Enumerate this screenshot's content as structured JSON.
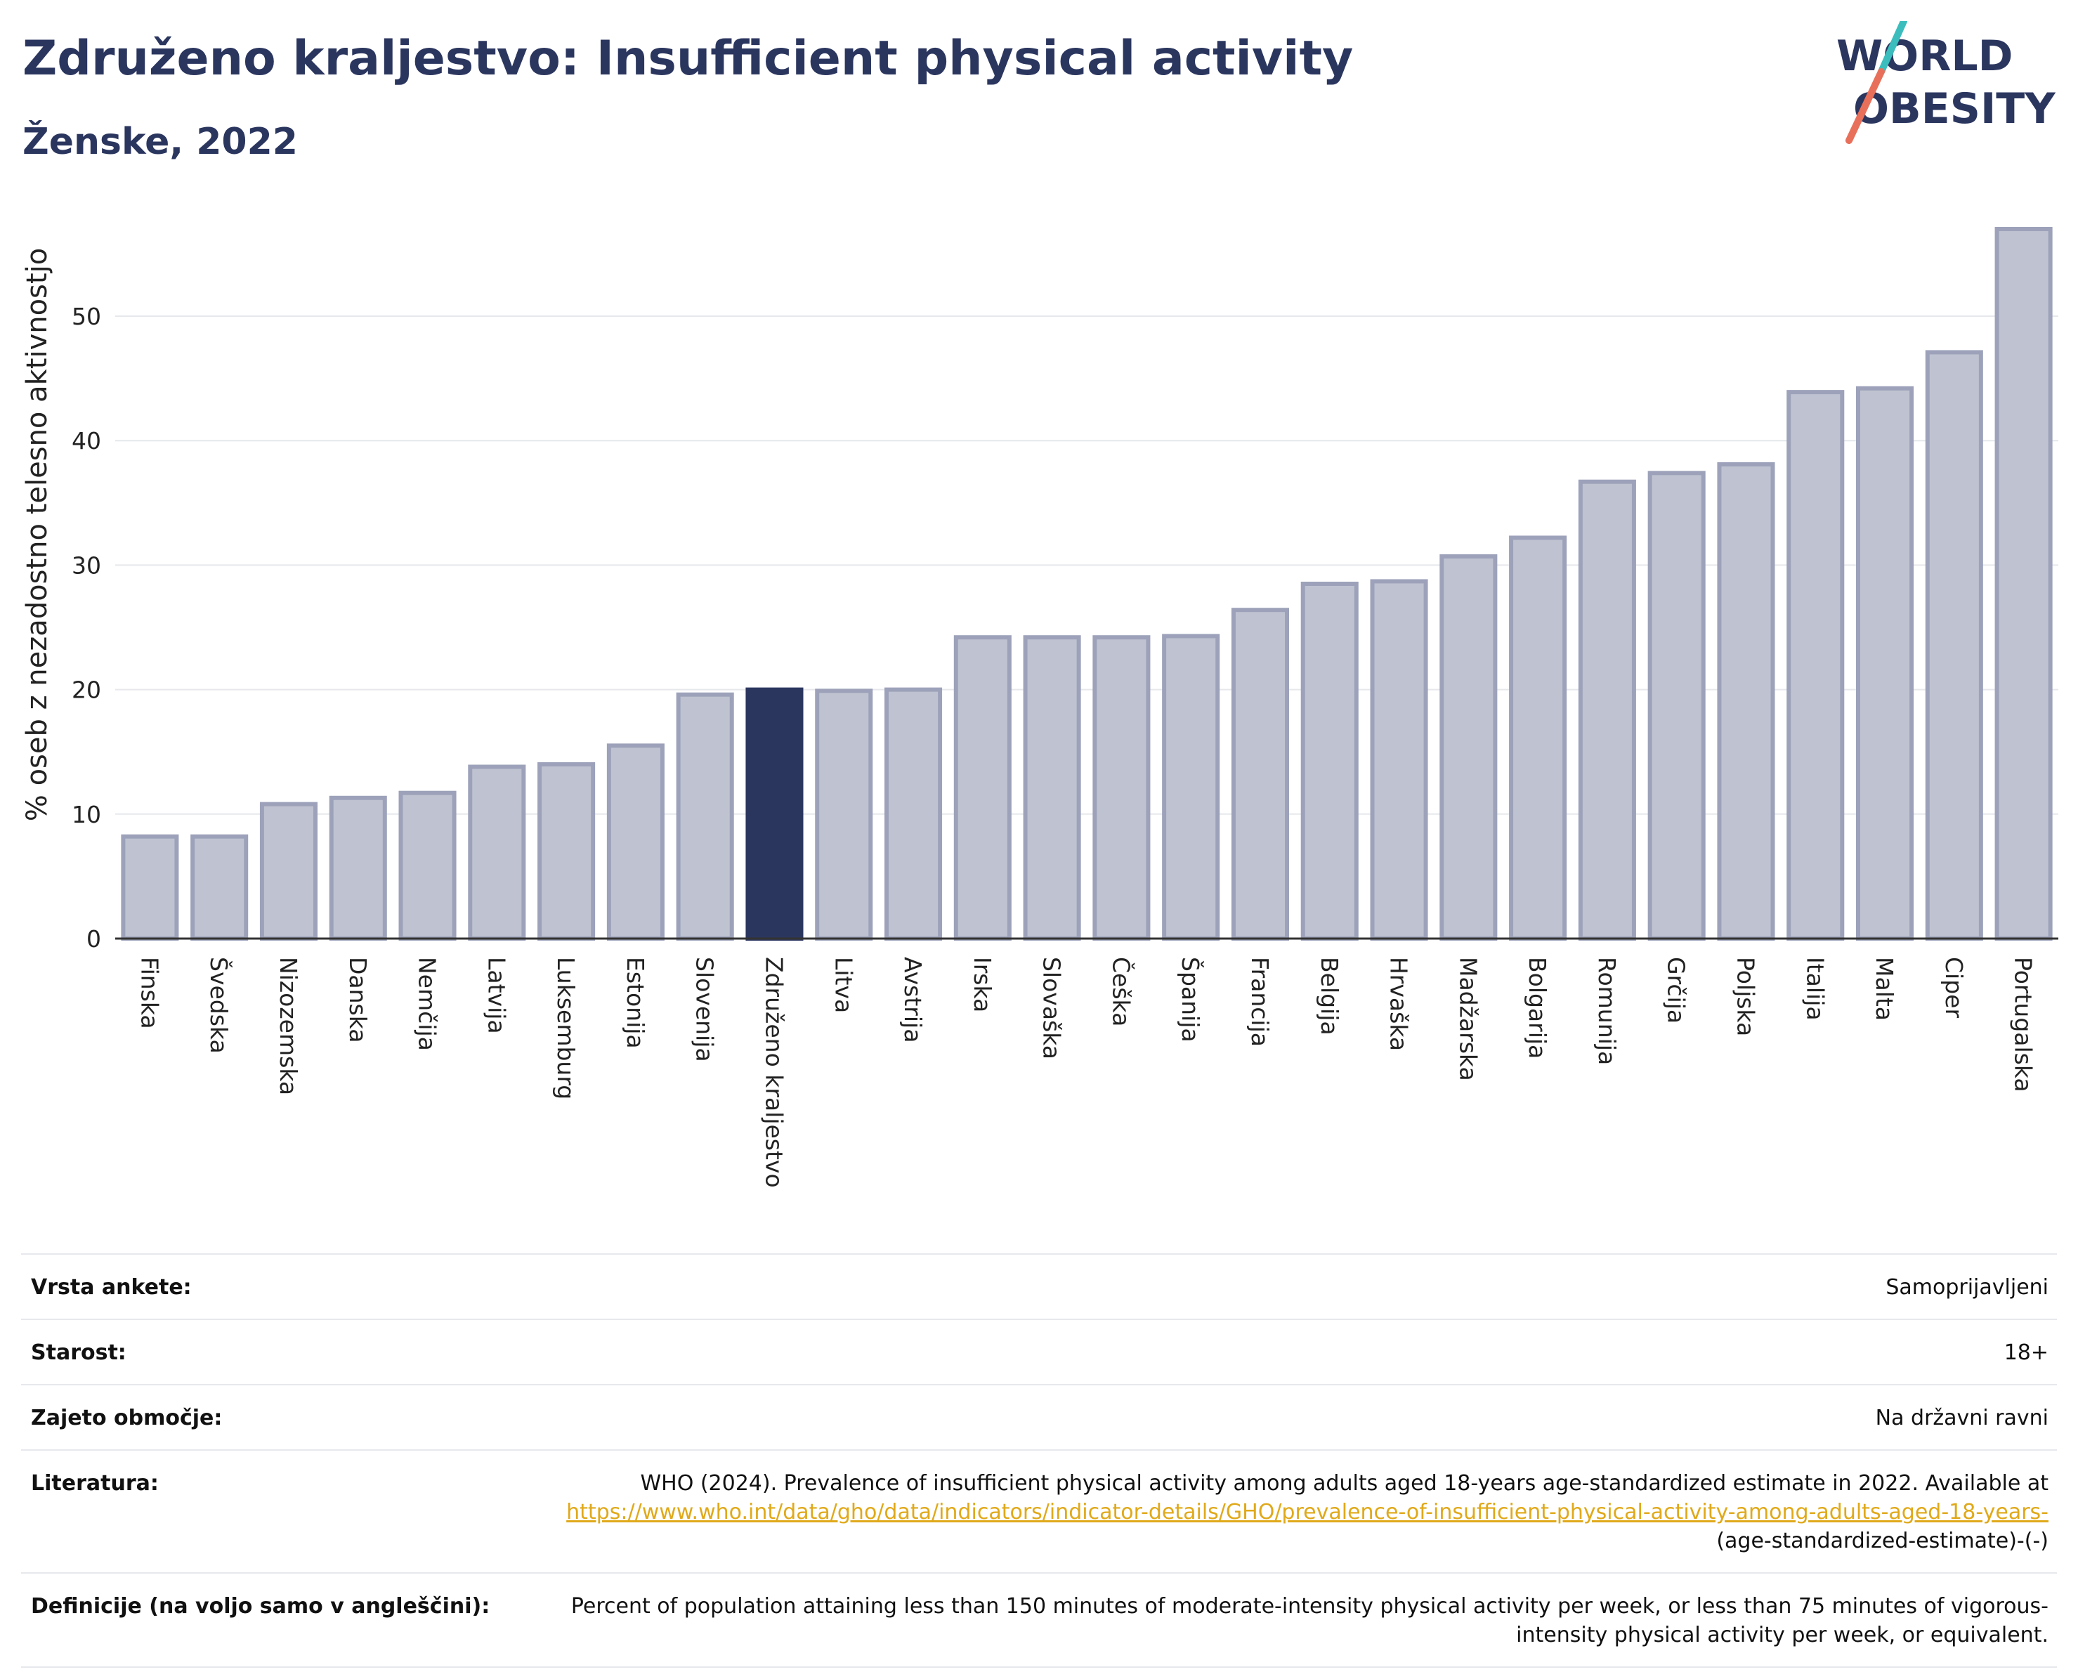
{
  "header": {
    "title": "Združeno kraljestvo: Insufficient physical activity",
    "subtitle": "Ženske, 2022"
  },
  "logo": {
    "line1": "WORLD",
    "line2": "OBESITY"
  },
  "colors": {
    "bar": "#bfc3d1",
    "bar_border": "#9da2ba",
    "highlight": "#2b365f",
    "grid": "#e6e8ec",
    "link": "#e0a91a"
  },
  "chart_data": {
    "type": "bar",
    "ylabel": "% oseb z nezadostno telesno aktivnostjo",
    "xlabel": "",
    "ylim": [
      0,
      57
    ],
    "yticks": [
      0,
      10,
      20,
      30,
      40,
      50
    ],
    "grid": true,
    "highlight": "Združeno kraljestvo",
    "categories": [
      "Finska",
      "Švedska",
      "Nizozemska",
      "Danska",
      "Nemčija",
      "Latvija",
      "Luksemburg",
      "Estonija",
      "Slovenija",
      "Združeno kraljestvo",
      "Litva",
      "Avstrija",
      "Irska",
      "Slovaška",
      "Češka",
      "Španija",
      "Francija",
      "Belgija",
      "Hrvaška",
      "Madžarska",
      "Bolgarija",
      "Romunija",
      "Grčija",
      "Poljska",
      "Italija",
      "Malta",
      "Ciper",
      "Portugalska"
    ],
    "values": [
      8.2,
      8.2,
      10.8,
      11.3,
      11.7,
      13.8,
      14.0,
      15.5,
      19.6,
      20.0,
      19.9,
      20.0,
      24.2,
      24.2,
      24.2,
      24.3,
      26.4,
      28.5,
      28.7,
      30.7,
      32.2,
      36.7,
      37.4,
      38.1,
      43.9,
      44.2,
      47.1,
      57.0
    ]
  },
  "meta": {
    "rows": [
      {
        "key": "Vrsta ankete:",
        "value": "Samoprijavljeni"
      },
      {
        "key": "Starost:",
        "value": "18+"
      },
      {
        "key": "Zajeto območje:",
        "value": "Na državni ravni"
      }
    ],
    "literature": {
      "key": "Literatura:",
      "text": "WHO (2024). Prevalence of insufficient physical activity among adults aged 18-years age-standardized estimate in 2022. Available at",
      "link": "https://www.who.int/data/gho/data/indicators/indicator-details/GHO/prevalence-of-insufficient-physical-activity-among-adults-aged-18-years-",
      "suffix": "(age-standardized-estimate)-(-)"
    },
    "definition": {
      "key": "Definicije (na voljo samo v angleščini):",
      "value": "Percent of population attaining less than 150 minutes of moderate-intensity physical activity per week, or less than 75 minutes of vigorous-intensity physical activity per week, or equivalent."
    }
  }
}
